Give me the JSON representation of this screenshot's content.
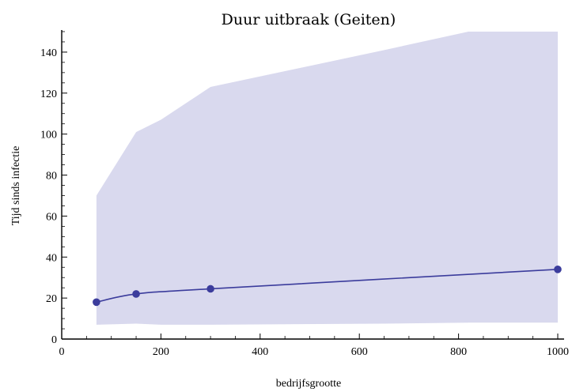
{
  "chart_data": {
    "type": "line",
    "title": "Duur uitbraak (Geiten)",
    "xlabel": "bedrijfsgrootte",
    "ylabel": "Tijd sinds infectie",
    "xlim": [
      0,
      1000
    ],
    "ylim": [
      0,
      150
    ],
    "x_ticks": [
      0,
      200,
      400,
      600,
      800,
      1000
    ],
    "y_ticks": [
      0,
      20,
      40,
      60,
      80,
      100,
      120,
      140
    ],
    "grid": false,
    "colors": {
      "band": "#d9d9ee",
      "line": "#3b3c9c",
      "marker": "#3b3c9c"
    },
    "band": {
      "x": [
        70,
        150,
        200,
        300,
        650,
        820,
        1000
      ],
      "upper": [
        70,
        101,
        107,
        123,
        141,
        150,
        150
      ],
      "lower": [
        7,
        7.5,
        7,
        7,
        7.5,
        8,
        8
      ]
    },
    "series": [
      {
        "values": [
          {
            "x": 70,
            "y": 18
          },
          {
            "x": 150,
            "y": 22
          },
          {
            "x": 300,
            "y": 24.5
          },
          {
            "x": 1000,
            "y": 34
          }
        ]
      }
    ]
  }
}
